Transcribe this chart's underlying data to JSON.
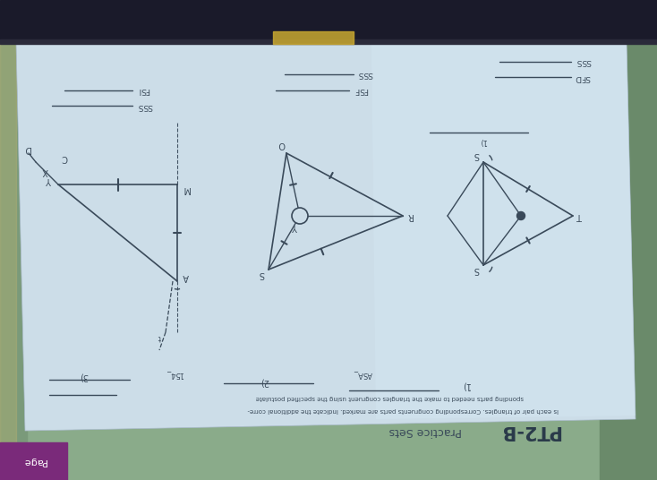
{
  "outer_bg_left": "#8aab9a",
  "outer_bg_right": "#6a8a7a",
  "dark_top_color": "#1e1e2e",
  "paper_color": "#ccdde8",
  "paper_color2": "#d8eaf4",
  "line_color": "#3a4a5a",
  "text_color": "#3a4a5a",
  "page_strip_color": "#7a2a7a",
  "tape_color": "#c8a830",
  "title": "PT2-B",
  "subtitle": "Practice Sets",
  "line1": "Is each pair of triangles. Corresponding congruents parts are marked. Indicate the additional corre-",
  "line2": "sponding parts needed to make the triangles congruent using the specified postulate",
  "num1": "1)",
  "num2": "2)",
  "num3": "3)",
  "post1": "SSS",
  "post2": "ASA",
  "post3": "154",
  "label_top_l1": "FSI",
  "label_top_l2": "SSS",
  "label_top_m1": "SSS",
  "label_top_m2": "FSF",
  "label_top_r1": "SSS",
  "label_top_r2": "SFD",
  "page_text": "Page"
}
